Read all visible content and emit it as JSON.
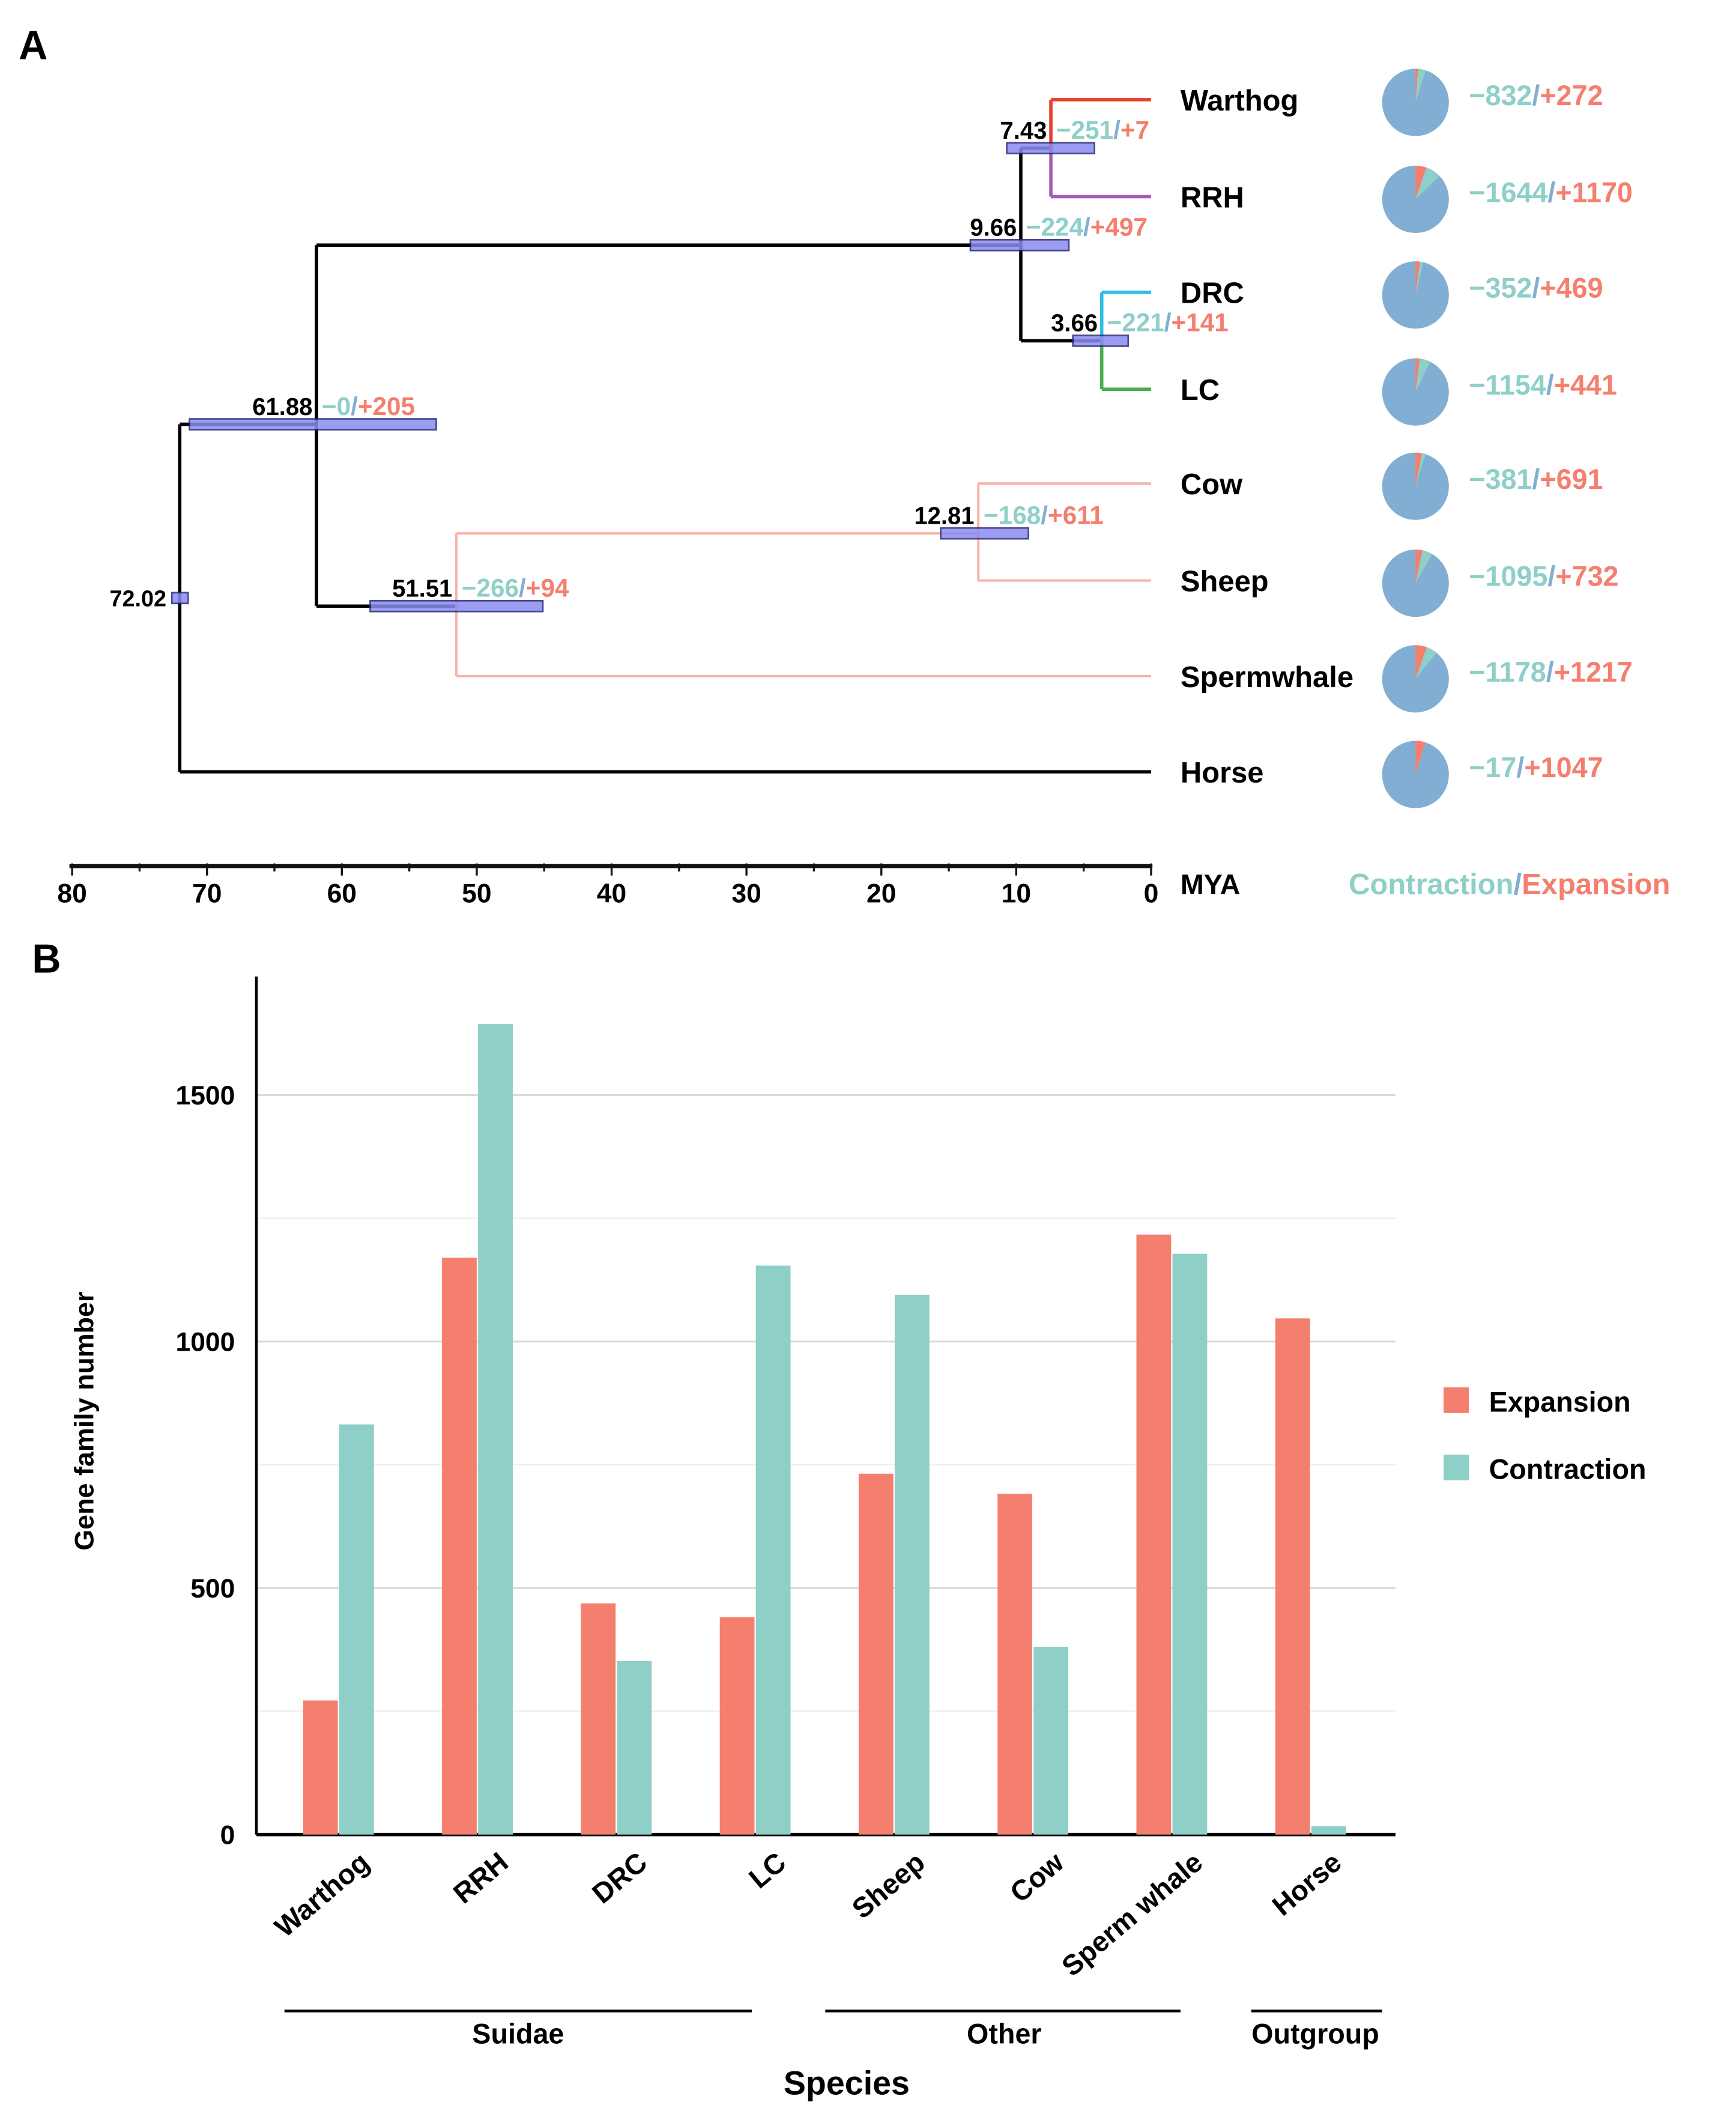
{
  "colors": {
    "contraction": "#8ecfc8",
    "expansion": "#f47f6f",
    "pie": "#82aed3",
    "bar_fill": "#8a8cf0",
    "pink_branch": "#f8b3a8"
  },
  "chart_data": [
    {
      "type": "tree",
      "panel_label": "A",
      "axis": {
        "unit": "MYA",
        "ticks": [
          80,
          70,
          60,
          50,
          40,
          30,
          20,
          10,
          0
        ],
        "range": [
          80,
          0
        ]
      },
      "legend": {
        "contraction": "Contraction",
        "slash": "/",
        "expansion": "Expansion"
      },
      "nodes": [
        {
          "age": "72.02",
          "age_value": 72.02,
          "contraction": "",
          "expansion": "",
          "ci": [
            72.6,
            71.4
          ]
        },
        {
          "age": "61.88",
          "age_value": 61.88,
          "contraction": "−0",
          "expansion": "+205",
          "ci": [
            71.3,
            53
          ]
        },
        {
          "age": "9.66",
          "age_value": 9.66,
          "contraction": "−224",
          "expansion": "+497",
          "ci": [
            13.4,
            6.1
          ]
        },
        {
          "age": "7.43",
          "age_value": 7.43,
          "contraction": "−251",
          "expansion": "+7",
          "ci": [
            10.7,
            4.2
          ]
        },
        {
          "age": "3.66",
          "age_value": 3.66,
          "contraction": "−221",
          "expansion": "+141",
          "ci": [
            5.8,
            1.7
          ]
        },
        {
          "age": "51.51",
          "age_value": 51.51,
          "contraction": "−266",
          "expansion": "+94",
          "ci": [
            57.9,
            45.1
          ]
        },
        {
          "age": "12.81",
          "age_value": 12.81,
          "contraction": "−168",
          "expansion": "+611",
          "ci": [
            15.6,
            9.1
          ]
        }
      ],
      "tips": [
        {
          "name": "Warthog",
          "contraction": "−832",
          "expansion": "+272",
          "branch_color": "#e8402a"
        },
        {
          "name": "RRH",
          "contraction": "−1644",
          "expansion": "+1170",
          "branch_color": "#a35bb5"
        },
        {
          "name": "DRC",
          "contraction": "−352",
          "expansion": "+469",
          "branch_color": "#2ebde8"
        },
        {
          "name": "LC",
          "contraction": "−1154",
          "expansion": "+441",
          "branch_color": "#4cae4c"
        },
        {
          "name": "Cow",
          "contraction": "−381",
          "expansion": "+691",
          "branch_color": "#f8b3a8"
        },
        {
          "name": "Sheep",
          "contraction": "−1095",
          "expansion": "+732",
          "branch_color": "#f8b3a8"
        },
        {
          "name": "Spermwhale",
          "contraction": "−1178",
          "expansion": "+1217",
          "branch_color": "#f8b3a8"
        },
        {
          "name": "Horse",
          "contraction": "−17",
          "expansion": "+1047",
          "branch_color": "#000000"
        }
      ]
    },
    {
      "type": "bar",
      "panel_label": "B",
      "categories": [
        "Warthog",
        "RRH",
        "DRC",
        "LC",
        "Sheep",
        "Cow",
        "Sperm whale",
        "Horse"
      ],
      "series": [
        {
          "name": "Expansion",
          "values": [
            272,
            1170,
            469,
            441,
            732,
            691,
            1217,
            1047
          ]
        },
        {
          "name": "Contraction",
          "values": [
            832,
            1644,
            352,
            1154,
            1095,
            381,
            1178,
            17
          ]
        }
      ],
      "ylabel": "Gene family number",
      "xlabel": "Species",
      "yticks": [
        0,
        500,
        1000,
        1500
      ],
      "ylim": [
        0,
        1740
      ],
      "grid": true,
      "legend_position": "right",
      "groups": [
        {
          "label": "Suidae",
          "members": [
            "Warthog",
            "RRH",
            "DRC",
            "LC"
          ]
        },
        {
          "label": "Other",
          "members": [
            "Sheep",
            "Cow",
            "Sperm whale"
          ]
        },
        {
          "label": "Outgroup",
          "members": [
            "Horse"
          ]
        }
      ]
    }
  ]
}
